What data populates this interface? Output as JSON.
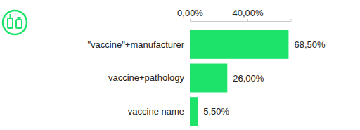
{
  "chart_data": {
    "type": "bar",
    "orientation": "horizontal",
    "categories": [
      "\"vaccine\"+manufacturer",
      "vaccine+pathology",
      "vaccine name"
    ],
    "values": [
      68.5,
      26,
      5.5
    ],
    "value_labels": [
      "68,50%",
      "26,00%",
      "5,50%"
    ],
    "data_labels": true,
    "color": "#1ee36b",
    "xlim": [
      0,
      70
    ],
    "xticks": [
      {
        "value": 0,
        "label": "0,00%"
      },
      {
        "value": 40,
        "label": "40,00%"
      }
    ]
  }
}
